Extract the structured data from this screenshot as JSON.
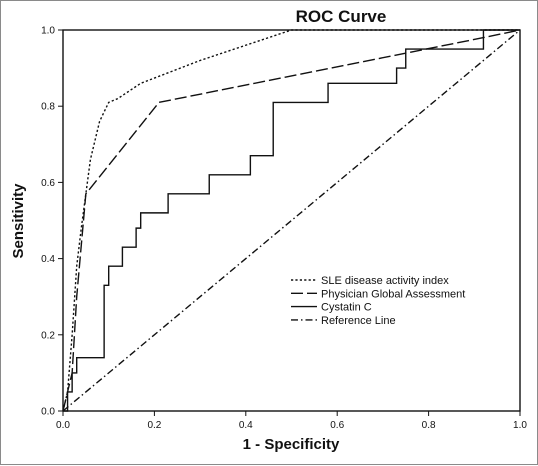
{
  "chart_data": {
    "type": "line",
    "title": "ROC Curve",
    "xlabel": "1 - Specificity",
    "ylabel": "Sensitivity",
    "xlim": [
      0.0,
      1.0
    ],
    "ylim": [
      0.0,
      1.0
    ],
    "x_ticks": [
      "0.0",
      "0.2",
      "0.4",
      "0.6",
      "0.8",
      "1.0"
    ],
    "y_ticks": [
      "0.0",
      "0.2",
      "0.4",
      "0.6",
      "0.8",
      "1.0"
    ],
    "grid": false,
    "legend_position": "lower-right",
    "series": [
      {
        "name": "SLE disease activity index",
        "style": "dotted",
        "color": "#111111",
        "points": [
          [
            0,
            0
          ],
          [
            0.01,
            0.05
          ],
          [
            0.02,
            0.2
          ],
          [
            0.03,
            0.38
          ],
          [
            0.04,
            0.48
          ],
          [
            0.05,
            0.57
          ],
          [
            0.06,
            0.66
          ],
          [
            0.08,
            0.76
          ],
          [
            0.1,
            0.81
          ],
          [
            0.12,
            0.82
          ],
          [
            0.17,
            0.86
          ],
          [
            0.3,
            0.92
          ],
          [
            0.5,
            1.0
          ],
          [
            1.0,
            1.0
          ]
        ]
      },
      {
        "name": "Physician Global Assessment",
        "style": "long-dash",
        "color": "#111111",
        "points": [
          [
            0,
            0
          ],
          [
            0.02,
            0.1
          ],
          [
            0.03,
            0.3
          ],
          [
            0.05,
            0.57
          ],
          [
            0.21,
            0.81
          ],
          [
            0.92,
            0.98
          ],
          [
            1.0,
            1.0
          ]
        ]
      },
      {
        "name": "Cystatin  C",
        "style": "solid",
        "color": "#111111",
        "points": [
          [
            0,
            0
          ],
          [
            0.01,
            0
          ],
          [
            0.01,
            0.05
          ],
          [
            0.02,
            0.05
          ],
          [
            0.02,
            0.1
          ],
          [
            0.03,
            0.1
          ],
          [
            0.03,
            0.14
          ],
          [
            0.09,
            0.14
          ],
          [
            0.09,
            0.33
          ],
          [
            0.1,
            0.33
          ],
          [
            0.1,
            0.38
          ],
          [
            0.13,
            0.38
          ],
          [
            0.13,
            0.43
          ],
          [
            0.16,
            0.43
          ],
          [
            0.16,
            0.48
          ],
          [
            0.17,
            0.48
          ],
          [
            0.17,
            0.52
          ],
          [
            0.23,
            0.52
          ],
          [
            0.23,
            0.57
          ],
          [
            0.32,
            0.57
          ],
          [
            0.32,
            0.62
          ],
          [
            0.41,
            0.62
          ],
          [
            0.41,
            0.67
          ],
          [
            0.46,
            0.67
          ],
          [
            0.46,
            0.81
          ],
          [
            0.58,
            0.81
          ],
          [
            0.58,
            0.86
          ],
          [
            0.73,
            0.86
          ],
          [
            0.73,
            0.9
          ],
          [
            0.75,
            0.9
          ],
          [
            0.75,
            0.95
          ],
          [
            0.92,
            0.95
          ],
          [
            0.92,
            1.0
          ],
          [
            1.0,
            1.0
          ]
        ]
      },
      {
        "name": "Reference Line",
        "style": "dash-dot",
        "color": "#111111",
        "points": [
          [
            0,
            0
          ],
          [
            1,
            1
          ]
        ]
      }
    ]
  }
}
